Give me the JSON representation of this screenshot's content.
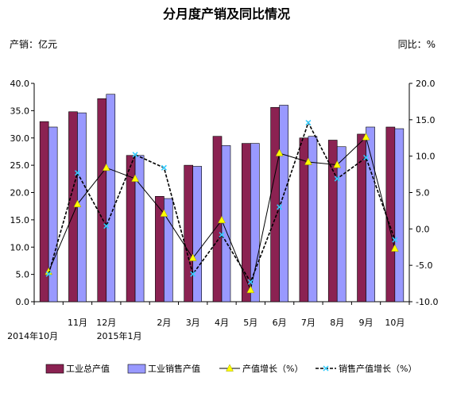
{
  "chart_data": {
    "type": "bar",
    "title": "分月度产销及同比情况",
    "left_unit": "产销：亿元",
    "right_unit": "同比：%",
    "categories": [
      "2014年10月",
      "11月",
      "12月",
      "2015年1月",
      "2月",
      "3月",
      "4月",
      "5月",
      "6月",
      "7月",
      "8月",
      "9月",
      "10月"
    ],
    "x_labels": [
      {
        "text": "2014年10月",
        "row": 2
      },
      {
        "text": "11月",
        "row": 1
      },
      {
        "text": "12月",
        "row": 1
      },
      {
        "text": "2015年1月",
        "row": 2
      },
      {
        "text": "2月",
        "row": 1
      },
      {
        "text": "3月",
        "row": 1
      },
      {
        "text": "4月",
        "row": 1
      },
      {
        "text": "5月",
        "row": 1
      },
      {
        "text": "6月",
        "row": 1
      },
      {
        "text": "7月",
        "row": 1
      },
      {
        "text": "8月",
        "row": 1
      },
      {
        "text": "9月",
        "row": 1
      },
      {
        "text": "10月",
        "row": 1
      }
    ],
    "ylim": [
      0,
      40
    ],
    "y_ticks": [
      "0.0",
      "5.0",
      "10.0",
      "15.0",
      "20.0",
      "25.0",
      "30.0",
      "35.0",
      "40.0"
    ],
    "y2lim": [
      -10,
      20
    ],
    "y2_ticks": [
      "-10.0",
      "-5.0",
      "0.0",
      "5.0",
      "10.0",
      "15.0",
      "20.0"
    ],
    "bar_series": [
      {
        "name": "工业总产值",
        "color": "#8b2252",
        "values": [
          33.0,
          34.8,
          37.2,
          26.8,
          19.3,
          25.0,
          30.3,
          29.0,
          35.6,
          30.0,
          29.6,
          30.7,
          32.0
        ]
      },
      {
        "name": "工业销售产值",
        "color": "#9999ff",
        "values": [
          32.0,
          34.6,
          38.0,
          26.8,
          18.9,
          24.8,
          28.6,
          29.0,
          36.0,
          30.3,
          28.4,
          32.0,
          31.7
        ]
      }
    ],
    "line_series": [
      {
        "name": "产值增长（%）",
        "color": "#000000",
        "marker_color": "#ffff00",
        "dash": "solid",
        "values": [
          -5.9,
          3.4,
          8.4,
          6.9,
          2.1,
          -4.0,
          1.2,
          -8.4,
          10.4,
          9.2,
          8.8,
          12.6,
          -2.7
        ]
      },
      {
        "name": "销售产值增长（%）",
        "color": "#000000",
        "marker_color": "#33ccff",
        "dash": "dash",
        "values": [
          -6.2,
          7.7,
          0.4,
          10.2,
          8.4,
          -6.2,
          -0.8,
          -7.3,
          3.0,
          14.6,
          6.9,
          9.8,
          -1.5
        ]
      }
    ]
  }
}
